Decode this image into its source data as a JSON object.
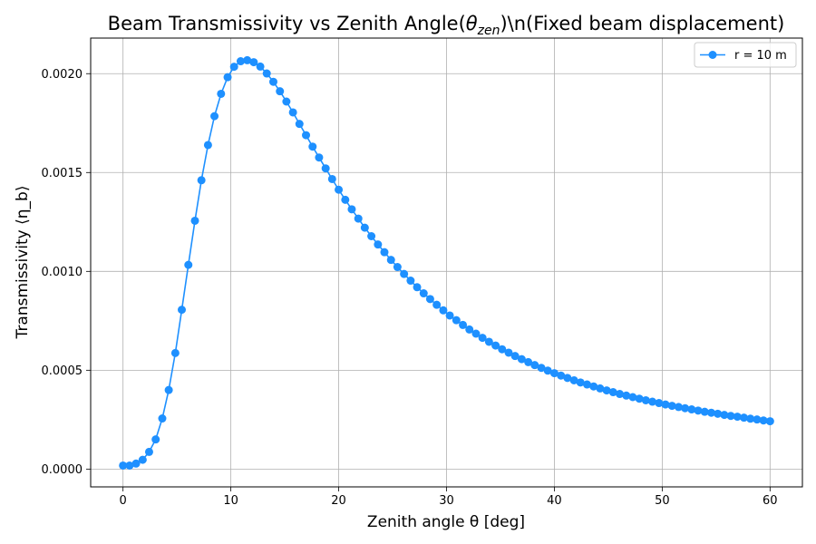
{
  "chart_data": {
    "type": "line",
    "title": "Beam Transmissivity vs Zenith Angle(θzen)\\n(Fixed beam displacement)",
    "title_parts": {
      "prefix": "Beam Transmissivity vs Zenith Angle(",
      "symbol": "θ",
      "subscript": "zen",
      "suffix": ")\\n(Fixed beam displacement)"
    },
    "xlabel": "Zenith angle θ [deg]",
    "ylabel": "Transmissivity ⟨η_b⟩",
    "xlim": [
      -3,
      63
    ],
    "ylim": [
      -9e-05,
      0.00218
    ],
    "x_ticks": [
      0,
      10,
      20,
      30,
      40,
      50,
      60
    ],
    "x_tick_labels": [
      "0",
      "10",
      "20",
      "30",
      "40",
      "50",
      "60"
    ],
    "y_ticks": [
      0,
      0.0005,
      0.001,
      0.0015,
      0.002
    ],
    "y_tick_labels": [
      "0.0000",
      "0.0005",
      "0.0010",
      "0.0015",
      "0.0020"
    ],
    "grid": true,
    "legend_position": "top-right",
    "series": [
      {
        "name": "r = 10 m",
        "color": "#1e90ff",
        "marker": "circle",
        "x": [
          0,
          0.61,
          1.21,
          1.82,
          2.42,
          3.03,
          3.64,
          4.24,
          4.85,
          5.45,
          6.06,
          6.67,
          7.27,
          7.88,
          8.48,
          9.09,
          9.7,
          10.3,
          10.91,
          11.52,
          12.12,
          12.73,
          13.33,
          13.94,
          14.55,
          15.15,
          15.76,
          16.36,
          16.97,
          17.58,
          18.18,
          18.79,
          19.39,
          20,
          20.61,
          21.21,
          21.82,
          22.42,
          23.03,
          23.64,
          24.24,
          24.85,
          25.45,
          26.06,
          26.67,
          27.27,
          27.88,
          28.48,
          29.09,
          29.7,
          30.3,
          30.91,
          31.52,
          32.12,
          32.73,
          33.33,
          33.94,
          34.55,
          35.15,
          35.76,
          36.36,
          36.97,
          37.58,
          38.18,
          38.79,
          39.39,
          40,
          40.61,
          41.21,
          41.82,
          42.42,
          43.03,
          43.64,
          44.24,
          44.85,
          45.45,
          46.06,
          46.67,
          47.27,
          47.88,
          48.48,
          49.09,
          49.7,
          50.3,
          50.91,
          51.52,
          52.12,
          52.73,
          53.33,
          53.94,
          54.55,
          55.15,
          55.76,
          56.36,
          56.97,
          57.58,
          58.18,
          58.79,
          59.39,
          60
        ],
        "y": [
          1.8e-05,
          1.8e-05,
          2.8e-05,
          4.7e-05,
          8.7e-05,
          0.00015,
          0.000256,
          0.0004,
          0.000587,
          0.000806,
          0.001033,
          0.001256,
          0.001461,
          0.001639,
          0.001785,
          0.001898,
          0.001982,
          0.002035,
          0.002063,
          0.002068,
          0.002058,
          0.002036,
          0.002001,
          0.001959,
          0.001911,
          0.001859,
          0.001804,
          0.001746,
          0.001689,
          0.001631,
          0.001576,
          0.001521,
          0.001467,
          0.001413,
          0.001362,
          0.001314,
          0.001267,
          0.001221,
          0.001178,
          0.001136,
          0.001097,
          0.001058,
          0.001022,
          0.000987,
          0.000953,
          0.00092,
          0.000889,
          0.00086,
          0.000831,
          0.000803,
          0.000777,
          0.000753,
          0.000729,
          0.000706,
          0.000685,
          0.000664,
          0.000644,
          0.000625,
          0.000606,
          0.000589,
          0.000572,
          0.000556,
          0.000541,
          0.000526,
          0.000512,
          0.000498,
          0.000485,
          0.000473,
          0.000461,
          0.000449,
          0.000438,
          0.000428,
          0.000418,
          0.000408,
          0.000398,
          0.000389,
          0.00038,
          0.000372,
          0.000364,
          0.000356,
          0.000348,
          0.000341,
          0.000334,
          0.000327,
          0.00032,
          0.000314,
          0.000308,
          0.000302,
          0.000296,
          0.00029,
          0.000285,
          0.00028,
          0.000274,
          0.000269,
          0.000265,
          0.00026,
          0.000255,
          0.000251,
          0.000246,
          0.000242
        ]
      }
    ]
  }
}
